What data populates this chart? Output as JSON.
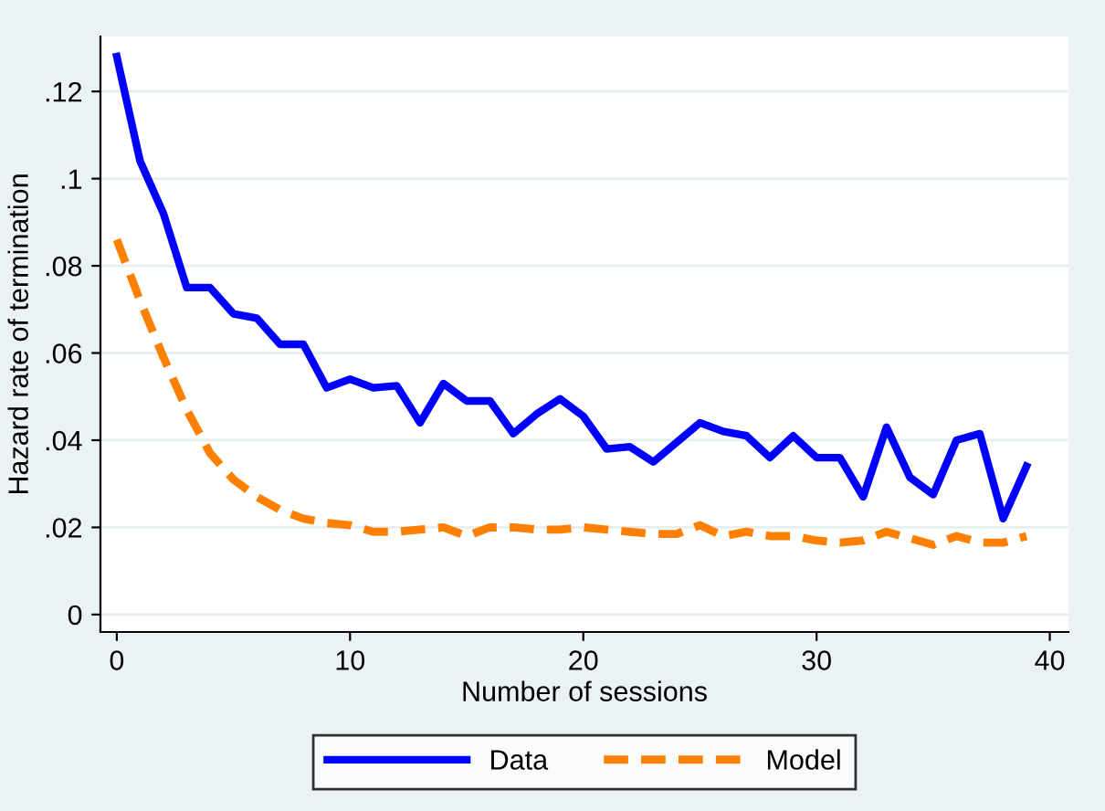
{
  "chart_data": {
    "type": "line",
    "xlabel": "Number of sessions",
    "ylabel": "Hazard rate of termination",
    "x": [
      0,
      1,
      2,
      3,
      4,
      5,
      6,
      7,
      8,
      9,
      10,
      11,
      12,
      13,
      14,
      15,
      16,
      17,
      18,
      19,
      20,
      21,
      22,
      23,
      24,
      25,
      26,
      27,
      28,
      29,
      30,
      31,
      32,
      33,
      34,
      35,
      36,
      37,
      38,
      39
    ],
    "series": [
      {
        "name": "Data",
        "color": "#0000ff",
        "line_style": "solid",
        "values": [
          0.128,
          0.104,
          0.092,
          0.075,
          0.075,
          0.069,
          0.068,
          0.062,
          0.062,
          0.052,
          0.054,
          0.052,
          0.0525,
          0.044,
          0.053,
          0.049,
          0.049,
          0.0415,
          0.046,
          0.0495,
          0.0455,
          0.038,
          0.0385,
          0.035,
          0.0395,
          0.044,
          0.042,
          0.041,
          0.036,
          0.041,
          0.036,
          0.036,
          0.027,
          0.043,
          0.0315,
          0.0275,
          0.04,
          0.0415,
          0.022,
          0.034
        ]
      },
      {
        "name": "Model",
        "color": "#ff8000",
        "line_style": "dashed",
        "values": [
          0.086,
          0.072,
          0.059,
          0.047,
          0.037,
          0.031,
          0.027,
          0.024,
          0.022,
          0.021,
          0.0205,
          0.019,
          0.019,
          0.0195,
          0.02,
          0.018,
          0.02,
          0.02,
          0.0195,
          0.0195,
          0.02,
          0.0195,
          0.019,
          0.0185,
          0.0185,
          0.0205,
          0.018,
          0.019,
          0.018,
          0.018,
          0.017,
          0.0165,
          0.017,
          0.019,
          0.0175,
          0.016,
          0.018,
          0.0165,
          0.0165,
          0.018
        ]
      }
    ],
    "xlim": [
      -0.7,
      40.8
    ],
    "ylim": [
      -0.004,
      0.1326
    ],
    "xticks": [
      0,
      10,
      20,
      30,
      40
    ],
    "yticks": [
      {
        "value": 0,
        "label": "0"
      },
      {
        "value": 0.02,
        "label": ".02"
      },
      {
        "value": 0.04,
        "label": ".04"
      },
      {
        "value": 0.06,
        "label": ".06"
      },
      {
        "value": 0.08,
        "label": ".08"
      },
      {
        "value": 0.1,
        "label": ".1"
      },
      {
        "value": 0.12,
        "label": ".12"
      }
    ],
    "grid": "y",
    "legend": "bottom"
  }
}
